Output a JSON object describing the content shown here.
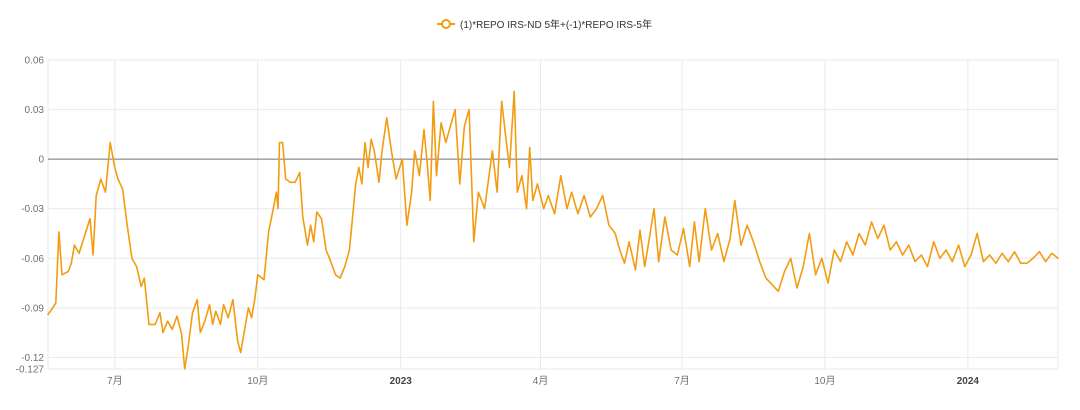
{
  "legend": {
    "series_label": "(1)*REPO IRS-ND 5年+(-1)*REPO IRS-5年"
  },
  "colors": {
    "series": "#f39c12",
    "grid": "#e6e9ee",
    "zero_line": "#6e7079",
    "axis_text": "#6e7079"
  },
  "chart_data": {
    "type": "line",
    "title": "",
    "xlabel": "",
    "ylabel": "",
    "ylim": [
      -0.127,
      0.06
    ],
    "y_ticks": [
      {
        "value": 0.06,
        "label": "0.06"
      },
      {
        "value": 0.03,
        "label": "0.03"
      },
      {
        "value": 0,
        "label": "0"
      },
      {
        "value": -0.03,
        "label": "-0.03"
      },
      {
        "value": -0.06,
        "label": "-0.06"
      },
      {
        "value": -0.09,
        "label": "-0.09"
      },
      {
        "value": -0.12,
        "label": "-0.12"
      },
      {
        "value": -0.127,
        "label": "-0.127"
      }
    ],
    "x_range": [
      "2022-05-19",
      "2024-02-28"
    ],
    "x_ticks": [
      {
        "date": "2022-07-01",
        "label": "7月",
        "bold": false
      },
      {
        "date": "2022-10-01",
        "label": "10月",
        "bold": false
      },
      {
        "date": "2023-01-01",
        "label": "2023",
        "bold": true
      },
      {
        "date": "2023-04-01",
        "label": "4月",
        "bold": false
      },
      {
        "date": "2023-07-01",
        "label": "7月",
        "bold": false
      },
      {
        "date": "2023-10-01",
        "label": "10月",
        "bold": false
      },
      {
        "date": "2024-01-01",
        "label": "2024",
        "bold": true
      }
    ],
    "grid": true,
    "legend_position": "top-center",
    "series": [
      {
        "name": "(1)*REPO IRS-ND 5年+(-1)*REPO IRS-5年",
        "points": [
          [
            "2022-05-19",
            -0.094
          ],
          [
            "2022-05-22",
            -0.09
          ],
          [
            "2022-05-24",
            -0.087
          ],
          [
            "2022-05-26",
            -0.044
          ],
          [
            "2022-05-28",
            -0.07
          ],
          [
            "2022-06-01",
            -0.068
          ],
          [
            "2022-06-03",
            -0.063
          ],
          [
            "2022-06-05",
            -0.052
          ],
          [
            "2022-06-08",
            -0.057
          ],
          [
            "2022-06-12",
            -0.045
          ],
          [
            "2022-06-15",
            -0.036
          ],
          [
            "2022-06-17",
            -0.058
          ],
          [
            "2022-06-19",
            -0.022
          ],
          [
            "2022-06-22",
            -0.012
          ],
          [
            "2022-06-25",
            -0.02
          ],
          [
            "2022-06-28",
            0.01
          ],
          [
            "2022-07-01",
            -0.005
          ],
          [
            "2022-07-03",
            -0.012
          ],
          [
            "2022-07-06",
            -0.018
          ],
          [
            "2022-07-09",
            -0.04
          ],
          [
            "2022-07-12",
            -0.06
          ],
          [
            "2022-07-15",
            -0.065
          ],
          [
            "2022-07-18",
            -0.077
          ],
          [
            "2022-07-20",
            -0.072
          ],
          [
            "2022-07-23",
            -0.1
          ],
          [
            "2022-07-27",
            -0.1
          ],
          [
            "2022-07-30",
            -0.093
          ],
          [
            "2022-08-01",
            -0.105
          ],
          [
            "2022-08-04",
            -0.098
          ],
          [
            "2022-08-07",
            -0.103
          ],
          [
            "2022-08-10",
            -0.095
          ],
          [
            "2022-08-13",
            -0.106
          ],
          [
            "2022-08-15",
            -0.127
          ],
          [
            "2022-08-17",
            -0.115
          ],
          [
            "2022-08-20",
            -0.093
          ],
          [
            "2022-08-23",
            -0.085
          ],
          [
            "2022-08-25",
            -0.105
          ],
          [
            "2022-08-28",
            -0.098
          ],
          [
            "2022-08-31",
            -0.088
          ],
          [
            "2022-09-02",
            -0.1
          ],
          [
            "2022-09-04",
            -0.092
          ],
          [
            "2022-09-07",
            -0.1
          ],
          [
            "2022-09-09",
            -0.088
          ],
          [
            "2022-09-12",
            -0.096
          ],
          [
            "2022-09-15",
            -0.085
          ],
          [
            "2022-09-18",
            -0.11
          ],
          [
            "2022-09-20",
            -0.117
          ],
          [
            "2022-09-22",
            -0.106
          ],
          [
            "2022-09-25",
            -0.09
          ],
          [
            "2022-09-27",
            -0.096
          ],
          [
            "2022-09-29",
            -0.085
          ],
          [
            "2022-10-01",
            -0.07
          ],
          [
            "2022-10-05",
            -0.073
          ],
          [
            "2022-10-08",
            -0.044
          ],
          [
            "2022-10-11",
            -0.03
          ],
          [
            "2022-10-13",
            -0.02
          ],
          [
            "2022-10-14",
            -0.03
          ],
          [
            "2022-10-15",
            0.01
          ],
          [
            "2022-10-17",
            0.01
          ],
          [
            "2022-10-19",
            -0.012
          ],
          [
            "2022-10-22",
            -0.014
          ],
          [
            "2022-10-25",
            -0.014
          ],
          [
            "2022-10-28",
            -0.008
          ],
          [
            "2022-10-30",
            -0.035
          ],
          [
            "2022-11-02",
            -0.052
          ],
          [
            "2022-11-04",
            -0.04
          ],
          [
            "2022-11-06",
            -0.05
          ],
          [
            "2022-11-08",
            -0.032
          ],
          [
            "2022-11-11",
            -0.036
          ],
          [
            "2022-11-14",
            -0.055
          ],
          [
            "2022-11-17",
            -0.062
          ],
          [
            "2022-11-20",
            -0.07
          ],
          [
            "2022-11-23",
            -0.072
          ],
          [
            "2022-11-26",
            -0.065
          ],
          [
            "2022-11-29",
            -0.055
          ],
          [
            "2022-12-01",
            -0.035
          ],
          [
            "2022-12-03",
            -0.015
          ],
          [
            "2022-12-05",
            -0.005
          ],
          [
            "2022-12-07",
            -0.015
          ],
          [
            "2022-12-09",
            0.01
          ],
          [
            "2022-12-11",
            -0.005
          ],
          [
            "2022-12-13",
            0.012
          ],
          [
            "2022-12-15",
            0.005
          ],
          [
            "2022-12-18",
            -0.014
          ],
          [
            "2022-12-20",
            0.005
          ],
          [
            "2022-12-23",
            0.025
          ],
          [
            "2022-12-26",
            0.005
          ],
          [
            "2022-12-29",
            -0.012
          ],
          [
            "2023-01-02",
            0.0
          ],
          [
            "2023-01-05",
            -0.04
          ],
          [
            "2023-01-08",
            -0.02
          ],
          [
            "2023-01-10",
            0.005
          ],
          [
            "2023-01-13",
            -0.01
          ],
          [
            "2023-01-16",
            0.018
          ],
          [
            "2023-01-18",
            -0.002
          ],
          [
            "2023-01-20",
            -0.025
          ],
          [
            "2023-01-22",
            0.035
          ],
          [
            "2023-01-24",
            -0.01
          ],
          [
            "2023-01-27",
            0.022
          ],
          [
            "2023-01-30",
            0.01
          ],
          [
            "2023-02-02",
            0.02
          ],
          [
            "2023-02-05",
            0.03
          ],
          [
            "2023-02-08",
            -0.015
          ],
          [
            "2023-02-11",
            0.02
          ],
          [
            "2023-02-14",
            0.03
          ],
          [
            "2023-02-17",
            -0.05
          ],
          [
            "2023-02-20",
            -0.02
          ],
          [
            "2023-02-24",
            -0.03
          ],
          [
            "2023-03-01",
            0.005
          ],
          [
            "2023-03-04",
            -0.02
          ],
          [
            "2023-03-07",
            0.035
          ],
          [
            "2023-03-10",
            0.01
          ],
          [
            "2023-03-12",
            -0.005
          ],
          [
            "2023-03-15",
            0.041
          ],
          [
            "2023-03-17",
            -0.02
          ],
          [
            "2023-03-20",
            -0.01
          ],
          [
            "2023-03-23",
            -0.03
          ],
          [
            "2023-03-25",
            0.007
          ],
          [
            "2023-03-27",
            -0.025
          ],
          [
            "2023-03-30",
            -0.015
          ],
          [
            "2023-04-03",
            -0.03
          ],
          [
            "2023-04-06",
            -0.022
          ],
          [
            "2023-04-10",
            -0.033
          ],
          [
            "2023-04-14",
            -0.01
          ],
          [
            "2023-04-18",
            -0.03
          ],
          [
            "2023-04-21",
            -0.02
          ],
          [
            "2023-04-25",
            -0.033
          ],
          [
            "2023-04-29",
            -0.022
          ],
          [
            "2023-05-03",
            -0.035
          ],
          [
            "2023-05-07",
            -0.03
          ],
          [
            "2023-05-11",
            -0.022
          ],
          [
            "2023-05-15",
            -0.04
          ],
          [
            "2023-05-19",
            -0.045
          ],
          [
            "2023-05-22",
            -0.055
          ],
          [
            "2023-05-25",
            -0.063
          ],
          [
            "2023-05-28",
            -0.05
          ],
          [
            "2023-06-01",
            -0.067
          ],
          [
            "2023-06-04",
            -0.043
          ],
          [
            "2023-06-07",
            -0.065
          ],
          [
            "2023-06-10",
            -0.048
          ],
          [
            "2023-06-13",
            -0.03
          ],
          [
            "2023-06-16",
            -0.062
          ],
          [
            "2023-06-20",
            -0.035
          ],
          [
            "2023-06-24",
            -0.055
          ],
          [
            "2023-06-28",
            -0.058
          ],
          [
            "2023-07-02",
            -0.042
          ],
          [
            "2023-07-06",
            -0.065
          ],
          [
            "2023-07-09",
            -0.038
          ],
          [
            "2023-07-12",
            -0.062
          ],
          [
            "2023-07-16",
            -0.03
          ],
          [
            "2023-07-20",
            -0.055
          ],
          [
            "2023-07-24",
            -0.045
          ],
          [
            "2023-07-28",
            -0.062
          ],
          [
            "2023-08-01",
            -0.048
          ],
          [
            "2023-08-04",
            -0.025
          ],
          [
            "2023-08-08",
            -0.052
          ],
          [
            "2023-08-12",
            -0.04
          ],
          [
            "2023-08-16",
            -0.05
          ],
          [
            "2023-08-20",
            -0.062
          ],
          [
            "2023-08-24",
            -0.072
          ],
          [
            "2023-08-28",
            -0.076
          ],
          [
            "2023-09-01",
            -0.08
          ],
          [
            "2023-09-05",
            -0.068
          ],
          [
            "2023-09-09",
            -0.06
          ],
          [
            "2023-09-13",
            -0.078
          ],
          [
            "2023-09-17",
            -0.065
          ],
          [
            "2023-09-21",
            -0.045
          ],
          [
            "2023-09-25",
            -0.07
          ],
          [
            "2023-09-29",
            -0.06
          ],
          [
            "2023-10-03",
            -0.075
          ],
          [
            "2023-10-07",
            -0.055
          ],
          [
            "2023-10-11",
            -0.062
          ],
          [
            "2023-10-15",
            -0.05
          ],
          [
            "2023-10-19",
            -0.058
          ],
          [
            "2023-10-23",
            -0.045
          ],
          [
            "2023-10-27",
            -0.052
          ],
          [
            "2023-10-31",
            -0.038
          ],
          [
            "2023-11-04",
            -0.048
          ],
          [
            "2023-11-08",
            -0.04
          ],
          [
            "2023-11-12",
            -0.055
          ],
          [
            "2023-11-16",
            -0.05
          ],
          [
            "2023-11-20",
            -0.058
          ],
          [
            "2023-11-24",
            -0.052
          ],
          [
            "2023-11-28",
            -0.062
          ],
          [
            "2023-12-02",
            -0.058
          ],
          [
            "2023-12-06",
            -0.065
          ],
          [
            "2023-12-10",
            -0.05
          ],
          [
            "2023-12-14",
            -0.06
          ],
          [
            "2023-12-18",
            -0.055
          ],
          [
            "2023-12-22",
            -0.062
          ],
          [
            "2023-12-26",
            -0.052
          ],
          [
            "2023-12-30",
            -0.065
          ],
          [
            "2024-01-03",
            -0.058
          ],
          [
            "2024-01-07",
            -0.045
          ],
          [
            "2024-01-11",
            -0.062
          ],
          [
            "2024-01-15",
            -0.058
          ],
          [
            "2024-01-19",
            -0.063
          ],
          [
            "2024-01-23",
            -0.057
          ],
          [
            "2024-01-27",
            -0.062
          ],
          [
            "2024-01-31",
            -0.056
          ],
          [
            "2024-02-04",
            -0.063
          ],
          [
            "2024-02-08",
            -0.063
          ],
          [
            "2024-02-12",
            -0.06
          ],
          [
            "2024-02-16",
            -0.056
          ],
          [
            "2024-02-20",
            -0.062
          ],
          [
            "2024-02-24",
            -0.057
          ],
          [
            "2024-02-28",
            -0.06
          ]
        ]
      }
    ]
  }
}
